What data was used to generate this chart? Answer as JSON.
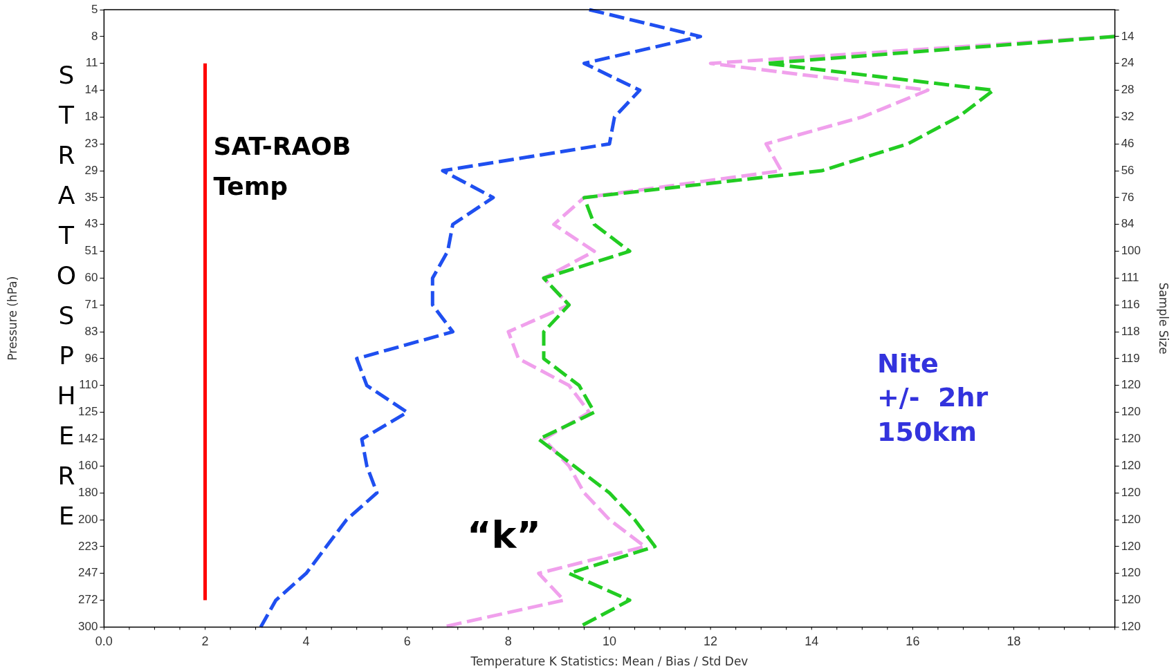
{
  "chart_data": {
    "type": "line",
    "xlabel": "Temperature K Statistics: Mean / Bias / Std Dev",
    "ylabel": "Pressure (hPa)",
    "y2label": "Sample Size",
    "categories": [
      "5",
      "8",
      "11",
      "14",
      "18",
      "23",
      "29",
      "35",
      "43",
      "51",
      "60",
      "71",
      "83",
      "96",
      "110",
      "125",
      "142",
      "160",
      "180",
      "200",
      "223",
      "247",
      "272",
      "300"
    ],
    "y2_categories": [
      null,
      "14",
      "24",
      "28",
      "32",
      "46",
      "56",
      "76",
      "84",
      "100",
      "111",
      "116",
      "118",
      "119",
      "120",
      "120",
      "120",
      "120",
      "120",
      "120",
      "120",
      "120",
      "120",
      "120"
    ],
    "orientation": "horizontal",
    "xlim": [
      0,
      20
    ],
    "xticks": [
      {
        "value": 0,
        "label": "0.0"
      },
      2,
      4,
      6,
      8,
      10,
      12,
      14,
      16,
      18
    ],
    "grid": false,
    "legend": false,
    "marker": "none",
    "series": [
      {
        "color": "#1f4ff0",
        "line_style": "dashed",
        "values": [
          9.6,
          11.8,
          9.5,
          10.6,
          10.1,
          10.0,
          6.7,
          7.7,
          6.9,
          6.8,
          6.5,
          6.5,
          6.9,
          5.0,
          5.2,
          6.0,
          5.1,
          5.2,
          5.4,
          4.8,
          4.4,
          4.0,
          3.4,
          3.1
        ]
      },
      {
        "color": "#22cc22",
        "line_style": "dashed",
        "values": [
          null,
          20,
          13.1,
          17.6,
          16.9,
          15.9,
          14.2,
          9.5,
          9.7,
          10.4,
          8.7,
          9.2,
          8.7,
          8.7,
          9.4,
          9.7,
          8.6,
          9.3,
          10.0,
          10.5,
          10.9,
          9.2,
          10.4,
          9.4
        ]
      },
      {
        "color": "#f0a0ec",
        "line_style": "dashed",
        "values": [
          null,
          20,
          12.0,
          16.3,
          15.0,
          13.1,
          13.4,
          9.5,
          8.9,
          9.7,
          8.7,
          9.2,
          8.0,
          8.2,
          9.2,
          9.6,
          8.7,
          9.2,
          9.5,
          10.0,
          10.7,
          8.6,
          9.1,
          6.7
        ]
      }
    ],
    "ref_lines": [
      {
        "axis": "x",
        "value": 2,
        "label": "SAT-RAOB\nTemp",
        "color": "#ff0000"
      }
    ],
    "annotations": [
      "STRATOSPHERE",
      "“k”",
      "Nite\n+/-  2hr\n150km"
    ]
  }
}
